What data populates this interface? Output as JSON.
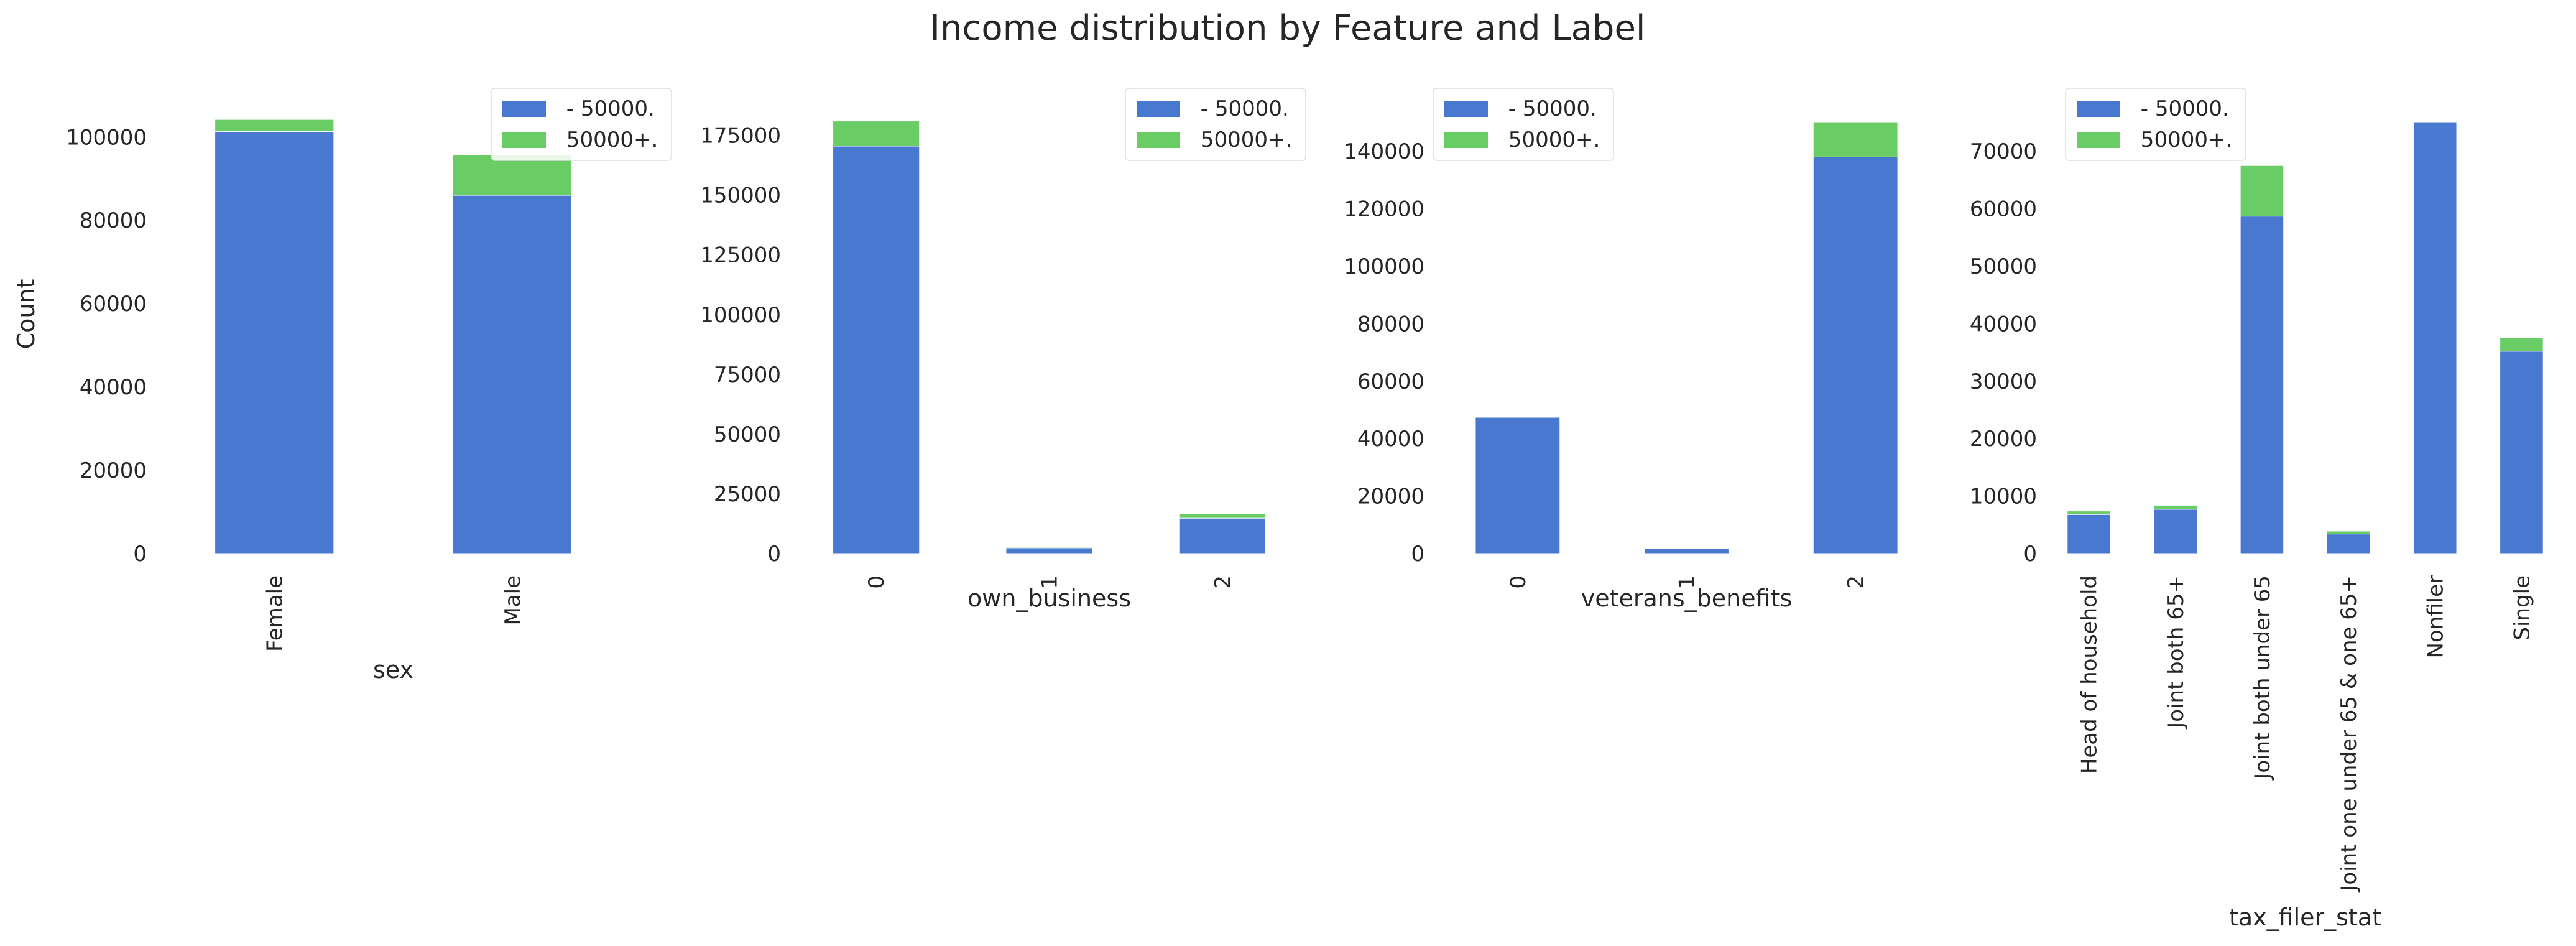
{
  "figure": {
    "title": "Income distribution by Feature and Label",
    "ylabel": "Count"
  },
  "colors": {
    "low": "#4878d0",
    "high": "#6acc64"
  },
  "chart_data": [
    {
      "type": "bar",
      "stacked": true,
      "xlabel": "sex",
      "ylabel": "Count",
      "categories": [
        "Female",
        "Male"
      ],
      "series": [
        {
          "name": " - 50000.",
          "values": [
            101300,
            86000
          ]
        },
        {
          "name": " 50000+.",
          "values": [
            2900,
            9700
          ]
        }
      ],
      "ylim": [
        0,
        109000
      ],
      "yticks": [
        0,
        20000,
        40000,
        60000,
        80000,
        100000
      ],
      "legend": "top-right"
    },
    {
      "type": "bar",
      "stacked": true,
      "xlabel": "own_business",
      "categories": [
        "0",
        "1",
        "2"
      ],
      "series": [
        {
          "name": " - 50000.",
          "values": [
            170500,
            2400,
            14800
          ]
        },
        {
          "name": " 50000+.",
          "values": [
            10500,
            350,
            1900
          ]
        }
      ],
      "ylim": [
        0,
        190000
      ],
      "yticks": [
        0,
        25000,
        50000,
        75000,
        100000,
        125000,
        150000,
        175000
      ],
      "legend": "top-right"
    },
    {
      "type": "bar",
      "stacked": true,
      "xlabel": "veterans_benefits",
      "categories": [
        "0",
        "1",
        "2"
      ],
      "series": [
        {
          "name": " - 50000.",
          "values": [
            47400,
            1800,
            138000
          ]
        },
        {
          "name": " 50000+.",
          "values": [
            0,
            100,
            12200
          ]
        }
      ],
      "ylim": [
        0,
        158000
      ],
      "yticks": [
        0,
        20000,
        40000,
        60000,
        80000,
        100000,
        120000,
        140000
      ],
      "legend": "top-left"
    },
    {
      "type": "bar",
      "stacked": true,
      "xlabel": "tax_filer_stat",
      "categories": [
        "Head of household",
        "Joint both 65+",
        "Joint both under 65",
        "Joint one under 65 & one 65+",
        "Nonfiler",
        "Single"
      ],
      "series": [
        {
          "name": " - 50000.",
          "values": [
            6800,
            7700,
            58700,
            3400,
            75100,
            35200
          ]
        },
        {
          "name": " 50000+.",
          "values": [
            600,
            700,
            8800,
            500,
            0,
            2300
          ]
        }
      ],
      "ylim": [
        0,
        79000
      ],
      "yticks": [
        0,
        10000,
        20000,
        30000,
        40000,
        50000,
        60000,
        70000
      ],
      "legend": "top-left"
    }
  ]
}
